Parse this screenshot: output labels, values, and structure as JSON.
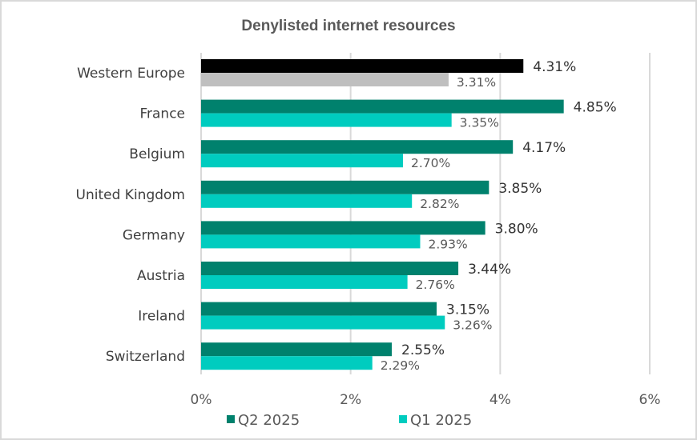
{
  "chart_data": {
    "type": "bar",
    "orientation": "horizontal",
    "title": "Denylisted internet resources",
    "categories": [
      "Western Europe",
      "France",
      "Belgium",
      "United Kingdom",
      "Germany",
      "Austria",
      "Ireland",
      "Switzerland"
    ],
    "series": [
      {
        "name": "Q2 2025",
        "color": "#00816d",
        "highlight_color": "#000000",
        "values": [
          4.31,
          4.85,
          4.17,
          3.85,
          3.8,
          3.44,
          3.15,
          2.55
        ],
        "labels": [
          "4.31%",
          "4.85%",
          "4.17%",
          "3.85%",
          "3.80%",
          "3.44%",
          "3.15%",
          "2.55%"
        ]
      },
      {
        "name": "Q1 2025",
        "color": "#00ccbf",
        "highlight_color": "#bfbfbf",
        "values": [
          3.31,
          3.35,
          2.7,
          2.82,
          2.93,
          2.76,
          3.26,
          2.29
        ],
        "labels": [
          "3.31%",
          "3.35%",
          "2.70%",
          "2.82%",
          "2.93%",
          "2.76%",
          "3.26%",
          "2.29%"
        ]
      }
    ],
    "xlim": [
      0,
      6
    ],
    "xticks": [
      0,
      2,
      4,
      6
    ],
    "xtick_labels": [
      "0%",
      "2%",
      "4%",
      "6%"
    ],
    "grid": true,
    "legend_position": "bottom"
  }
}
